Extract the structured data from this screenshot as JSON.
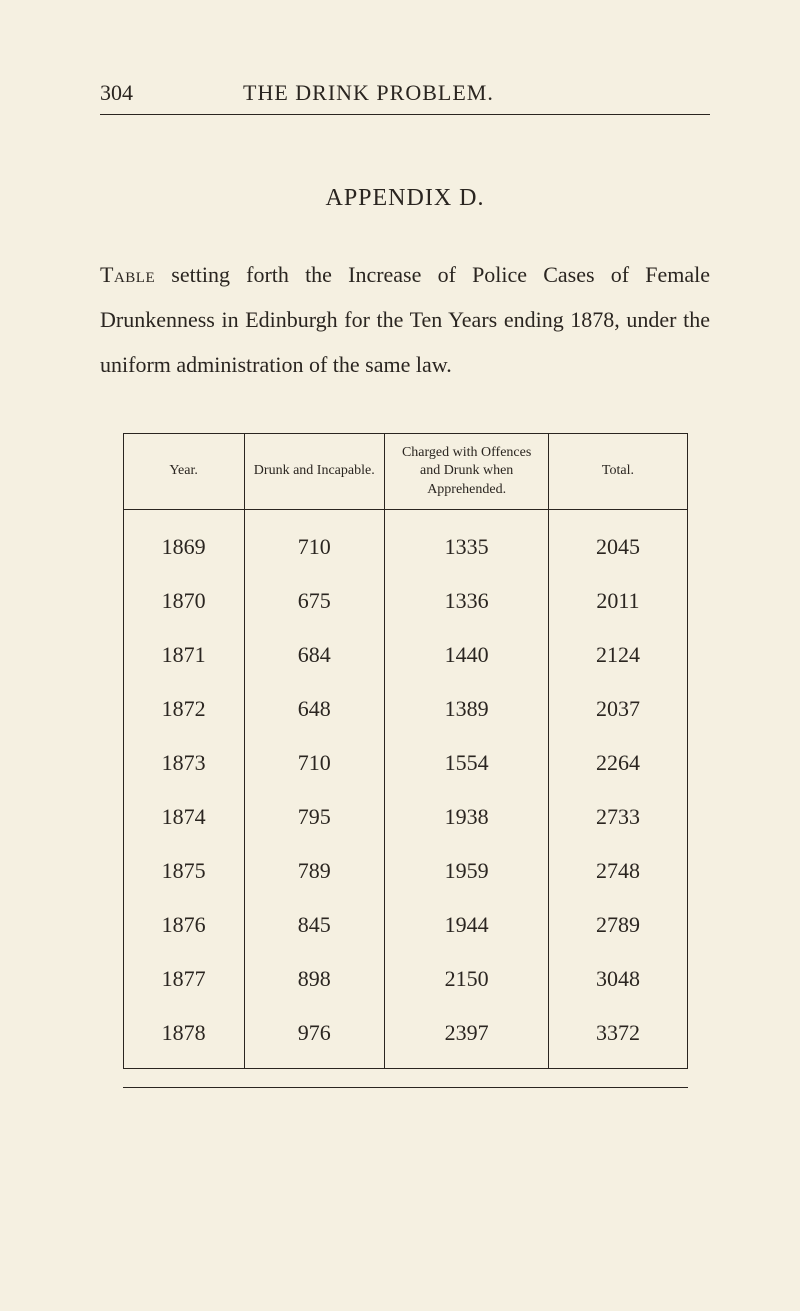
{
  "page_number": "304",
  "running_title": "THE DRINK PROBLEM.",
  "appendix_title": "APPENDIX D.",
  "intro_lead": "Table",
  "intro_rest": " setting forth the Increase of Police Cases of Female Drunkenness in Edinburgh for the Ten Years ending 1878, under the uniform administration of the same law.",
  "table": {
    "columns": [
      "Year.",
      "Drunk and Incapable.",
      "Charged with Offences and Drunk when Apprehended.",
      "Total."
    ],
    "rows": [
      [
        "1869",
        "710",
        "1335",
        "2045"
      ],
      [
        "1870",
        "675",
        "1336",
        "2011"
      ],
      [
        "1871",
        "684",
        "1440",
        "2124"
      ],
      [
        "1872",
        "648",
        "1389",
        "2037"
      ],
      [
        "1873",
        "710",
        "1554",
        "2264"
      ],
      [
        "1874",
        "795",
        "1938",
        "2733"
      ],
      [
        "1875",
        "789",
        "1959",
        "2748"
      ],
      [
        "1876",
        "845",
        "1944",
        "2789"
      ],
      [
        "1877",
        "898",
        "2150",
        "3048"
      ],
      [
        "1878",
        "976",
        "2397",
        "3372"
      ]
    ],
    "header_fontsize": 14,
    "cell_fontsize": 22,
    "border_color": "#2a2520",
    "background": "#f5f0e1"
  }
}
